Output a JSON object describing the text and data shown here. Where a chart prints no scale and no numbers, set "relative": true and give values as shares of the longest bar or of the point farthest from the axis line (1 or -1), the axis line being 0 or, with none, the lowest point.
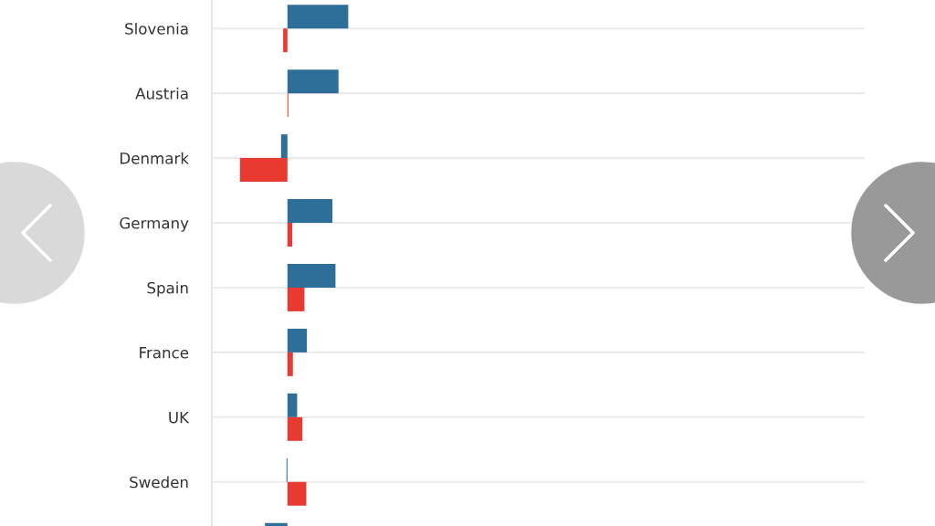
{
  "chart_data": {
    "type": "bar",
    "orientation": "horizontal",
    "relative": true,
    "grid": "y",
    "tick_labels": "y",
    "categories": [
      "Slovenia",
      "Austria",
      "Denmark",
      "Germany",
      "Spain",
      "France",
      "UK",
      "Sweden",
      null
    ],
    "series": [
      {
        "color": "#2e6f99",
        "values": [
          1,
          0.84,
          -0.105,
          0.74,
          0.79,
          0.32,
          0.16,
          -0.016,
          -0.37
        ]
      },
      {
        "color": "#e83a30",
        "values": [
          -0.07,
          0.015,
          -0.78,
          0.08,
          0.28,
          0.09,
          0.245,
          0.31,
          null
        ]
      }
    ]
  }
}
